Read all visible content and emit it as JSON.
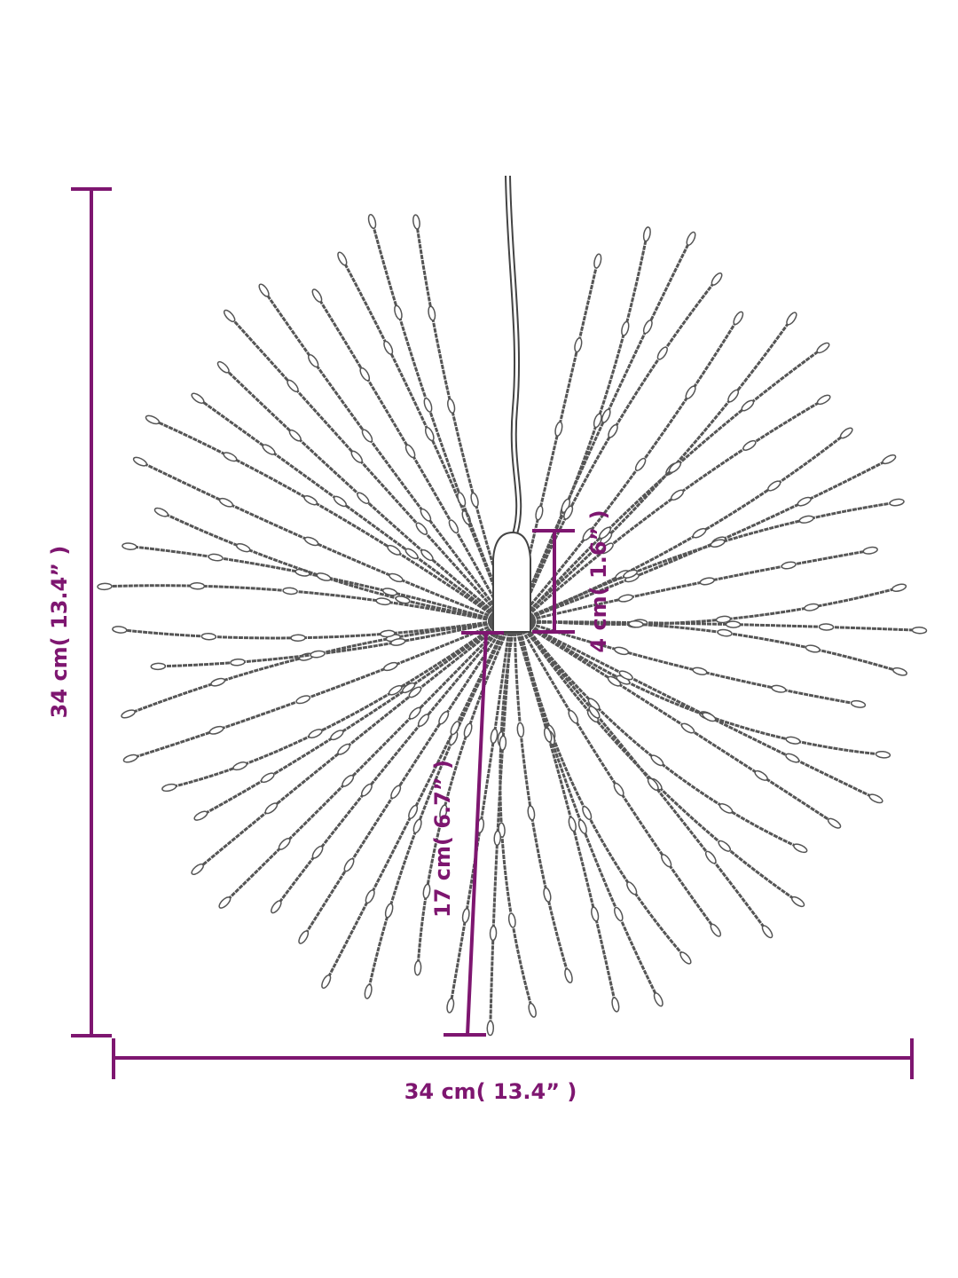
{
  "dimensions": {
    "height": "34 cm( 13.4” )",
    "width": "34 cm( 13.4” )",
    "strand_length": "17 cm( 6.7” )",
    "hub_height": "4 cm( 1.6” )"
  }
}
